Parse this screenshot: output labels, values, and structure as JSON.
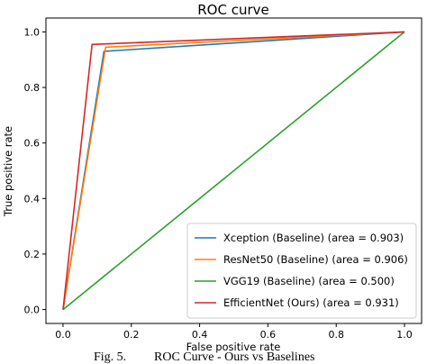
{
  "chart_data": {
    "type": "line",
    "title": "ROC curve",
    "xlabel": "False positive rate",
    "ylabel": "True positive rate",
    "xlim": [
      -0.05,
      1.05
    ],
    "ylim": [
      -0.05,
      1.05
    ],
    "xticks": [
      "0.0",
      "0.2",
      "0.4",
      "0.6",
      "0.8",
      "1.0"
    ],
    "yticks": [
      "0.0",
      "0.2",
      "0.4",
      "0.6",
      "0.8",
      "1.0"
    ],
    "grid": false,
    "legend_position": "lower-right",
    "series": [
      {
        "name": "Xception (Baseline) (area = 0.903)",
        "color": "#1f77b4",
        "x": [
          0.0,
          0.12,
          1.0
        ],
        "y": [
          0.0,
          0.93,
          1.0
        ]
      },
      {
        "name": "ResNet50 (Baseline) (area = 0.906)",
        "color": "#ff7f0e",
        "x": [
          0.0,
          0.125,
          1.0
        ],
        "y": [
          0.0,
          0.945,
          1.0
        ]
      },
      {
        "name": "VGG19 (Baseline) (area = 0.500)",
        "color": "#2ca02c",
        "x": [
          0.0,
          1.0
        ],
        "y": [
          0.0,
          1.0
        ]
      },
      {
        "name": "EfficientNet (Ours) (area = 0.931)",
        "color": "#d62728",
        "x": [
          0.0,
          0.085,
          1.0
        ],
        "y": [
          0.0,
          0.955,
          1.0
        ]
      }
    ]
  },
  "caption": {
    "label": "Fig. 5.",
    "text": "ROC Curve - Ours vs Baselines"
  }
}
